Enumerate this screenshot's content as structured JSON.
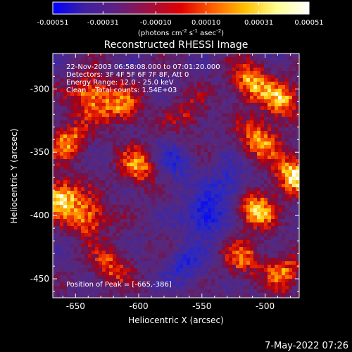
{
  "chart_data": {
    "type": "heatmap",
    "title": "Reconstructed RHESSI Image",
    "xlabel": "Heliocentric X (arcsec)",
    "ylabel": "Heliocentric Y (arcsec)",
    "xlim": [
      -668,
      -473
    ],
    "ylim": [
      -465,
      -272
    ],
    "x_ticks": [
      -650,
      -600,
      -550,
      -500
    ],
    "x_tick_labels": [
      "-650",
      "-600",
      "-550",
      "-500"
    ],
    "y_ticks": [
      -300,
      -350,
      -400,
      -450
    ],
    "y_tick_labels": [
      "-300",
      "-350",
      "-400",
      "-450"
    ],
    "colorbar": {
      "vmin": -0.00051,
      "vmax": 0.00051,
      "tick_values": [
        -0.00051,
        -0.00031,
        -0.0001,
        0.0001,
        0.00031,
        0.00051
      ],
      "tick_labels": [
        "-0.00051",
        "-0.00031",
        "-0.00010",
        "0.00010",
        "0.00031",
        "0.00051"
      ],
      "unit_text": "(photons cm",
      "unit_exp1": "-2",
      "unit_mid": " s",
      "unit_exp2": "-1",
      "unit_end": " asec",
      "unit_exp3": "-2",
      "unit_close": ")",
      "colormap": [
        "#0000ff",
        "#4020a0",
        "#602080",
        "#a01040",
        "#e00000",
        "#ff6000",
        "#ffc000",
        "#ffff90",
        "#ffffff"
      ]
    },
    "annotations": {
      "time_range": "22-Nov-2003 06:58:08.000 to 07:01:20.000",
      "detectors": "Detectors: 3F 4F 5F 6F 7F 8F, Att 0",
      "energy_range": "Energy Range: 12.0 - 25.0 keV",
      "algorithm_counts": "Clean    Total counts: 1.54E+03",
      "peak_position": "Position of Peak = [-665,-386]"
    },
    "bright_regions": [
      {
        "x": -638,
        "y": -305,
        "level": 0.85
      },
      {
        "x": -655,
        "y": -340,
        "level": 0.75
      },
      {
        "x": -663,
        "y": -385,
        "level": 1.0
      },
      {
        "x": -640,
        "y": -402,
        "level": 0.8
      },
      {
        "x": -612,
        "y": -315,
        "level": 0.7
      },
      {
        "x": -600,
        "y": -362,
        "level": 0.75
      },
      {
        "x": -622,
        "y": -440,
        "level": 0.6
      },
      {
        "x": -512,
        "y": -295,
        "level": 0.85
      },
      {
        "x": -486,
        "y": -310,
        "level": 0.75
      },
      {
        "x": -505,
        "y": -340,
        "level": 0.8
      },
      {
        "x": -478,
        "y": -368,
        "level": 0.95
      },
      {
        "x": -508,
        "y": -395,
        "level": 0.9
      },
      {
        "x": -518,
        "y": -435,
        "level": 0.6
      },
      {
        "x": -485,
        "y": -445,
        "level": 0.65
      },
      {
        "x": -560,
        "y": -320,
        "level": 0.45
      }
    ],
    "dark_regions": [
      {
        "x": -548,
        "y": -400,
        "level": -0.9
      },
      {
        "x": -528,
        "y": -375,
        "level": -0.6
      },
      {
        "x": -572,
        "y": -360,
        "level": -0.5
      },
      {
        "x": -562,
        "y": -440,
        "level": -0.55
      }
    ]
  },
  "footer": {
    "timestamp": "7-May-2022 07:26"
  }
}
